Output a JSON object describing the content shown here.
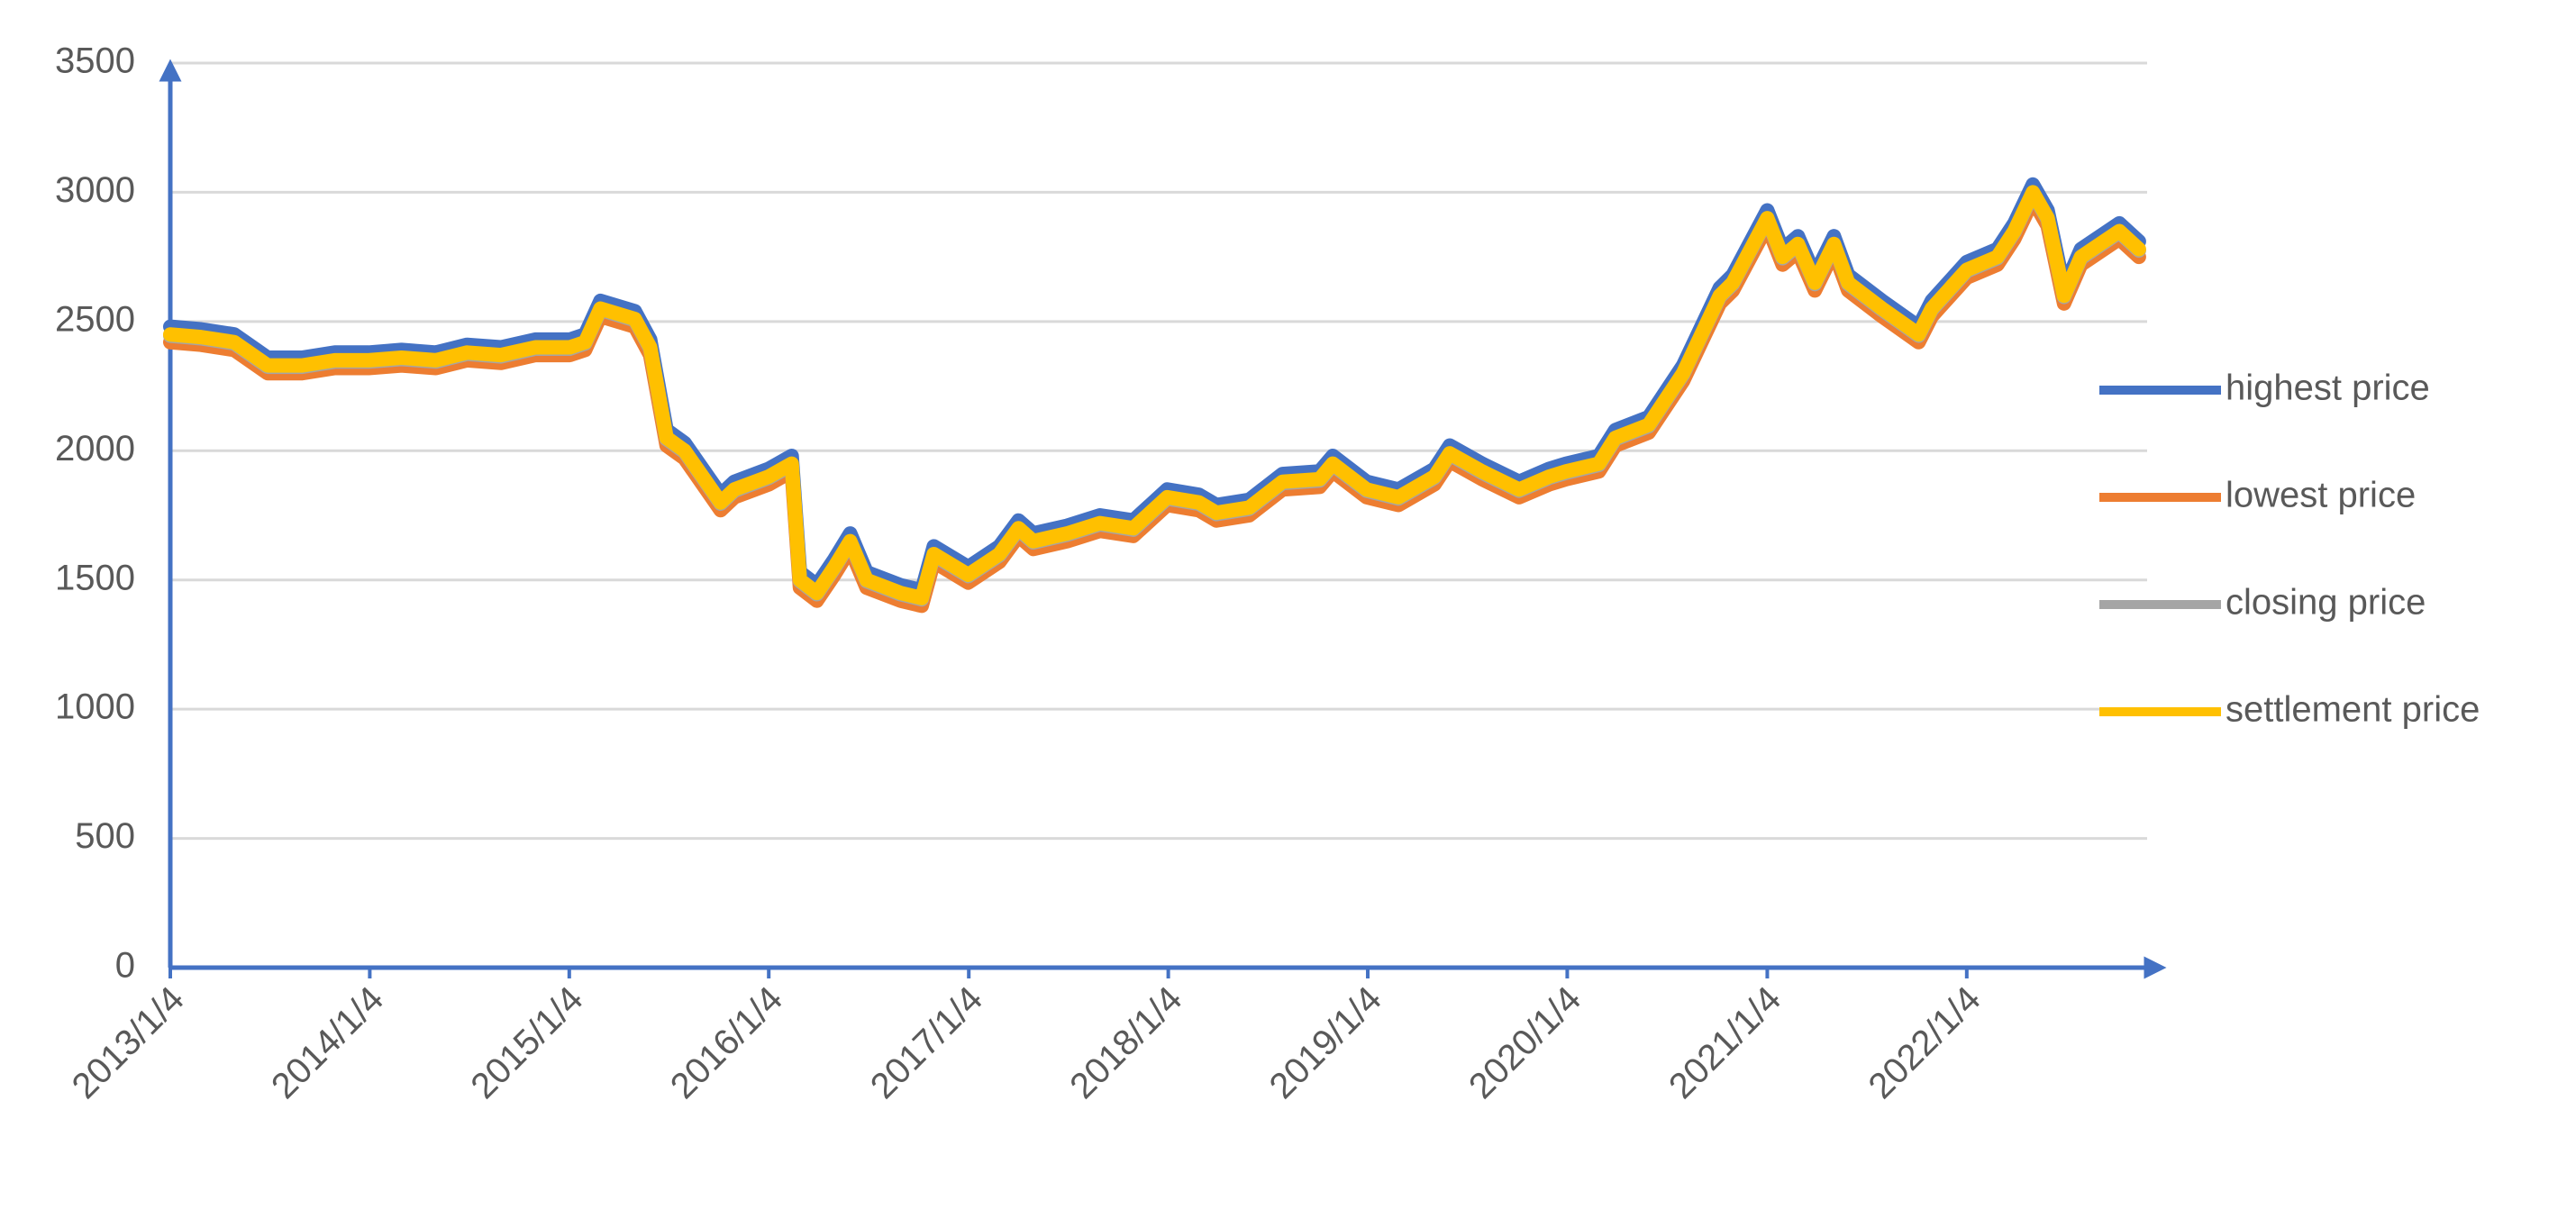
{
  "chart_data": {
    "type": "line",
    "x": [
      "2013/1/4",
      "2013/3/1",
      "2013/5/1",
      "2013/7/1",
      "2013/9/2",
      "2013/11/1",
      "2014/1/2",
      "2014/3/3",
      "2014/5/5",
      "2014/7/1",
      "2014/9/1",
      "2014/11/3",
      "2015/1/5",
      "2015/2/2",
      "2015/3/2",
      "2015/5/4",
      "2015/6/1",
      "2015/7/1",
      "2015/8/3",
      "2015/10/8",
      "2015/11/2",
      "2016/1/4",
      "2016/2/15",
      "2016/3/1",
      "2016/4/1",
      "2016/5/3",
      "2016/6/1",
      "2016/7/1",
      "2016/9/1",
      "2016/10/10",
      "2016/11/1",
      "2017/1/3",
      "2017/3/1",
      "2017/4/5",
      "2017/5/2",
      "2017/7/3",
      "2017/9/1",
      "2017/11/1",
      "2018/1/2",
      "2018/3/1",
      "2018/4/2",
      "2018/6/1",
      "2018/8/1",
      "2018/10/8",
      "2018/11/1",
      "2019/1/2",
      "2019/3/1",
      "2019/5/6",
      "2019/6/3",
      "2019/8/1",
      "2019/10/8",
      "2019/12/2",
      "2020/1/2",
      "2020/3/2",
      "2020/4/1",
      "2020/6/1",
      "2020/8/3",
      "2020/10/9",
      "2020/11/2",
      "2021/1/4",
      "2021/2/1",
      "2021/3/1",
      "2021/4/1",
      "2021/5/6",
      "2021/6/1",
      "2021/8/2",
      "2021/10/8",
      "2021/11/1",
      "2022/1/4",
      "2022/3/1",
      "2022/4/1",
      "2022/5/5",
      "2022/6/1",
      "2022/7/1",
      "2022/8/1",
      "2022/10/10",
      "2022/11/15"
    ],
    "series": [
      {
        "name": "highest price",
        "color": "#4472c4",
        "values": [
          2480,
          2470,
          2450,
          2360,
          2360,
          2380,
          2380,
          2390,
          2380,
          2410,
          2400,
          2430,
          2430,
          2450,
          2580,
          2540,
          2430,
          2080,
          2030,
          1830,
          1880,
          1930,
          1980,
          1530,
          1480,
          1580,
          1680,
          1530,
          1480,
          1460,
          1630,
          1550,
          1630,
          1730,
          1680,
          1710,
          1750,
          1730,
          1850,
          1830,
          1790,
          1810,
          1910,
          1920,
          1980,
          1880,
          1850,
          1930,
          2020,
          1950,
          1880,
          1930,
          1950,
          1980,
          2080,
          2130,
          2330,
          2630,
          2680,
          2930,
          2780,
          2830,
          2680,
          2830,
          2680,
          2580,
          2480,
          2580,
          2730,
          2780,
          2880,
          3030,
          2930,
          2630,
          2780,
          2880,
          2810
        ]
      },
      {
        "name": "lowest price",
        "color": "#ed7d31",
        "values": [
          2420,
          2410,
          2390,
          2300,
          2300,
          2320,
          2320,
          2330,
          2320,
          2350,
          2340,
          2370,
          2370,
          2390,
          2520,
          2480,
          2370,
          2020,
          1970,
          1770,
          1820,
          1870,
          1920,
          1470,
          1420,
          1520,
          1620,
          1470,
          1420,
          1400,
          1570,
          1490,
          1570,
          1670,
          1620,
          1650,
          1690,
          1670,
          1790,
          1770,
          1730,
          1750,
          1850,
          1860,
          1920,
          1820,
          1790,
          1870,
          1960,
          1890,
          1820,
          1870,
          1890,
          1920,
          2020,
          2070,
          2270,
          2570,
          2620,
          2870,
          2720,
          2770,
          2620,
          2770,
          2620,
          2520,
          2420,
          2520,
          2670,
          2720,
          2820,
          2970,
          2870,
          2570,
          2720,
          2820,
          2750
        ]
      },
      {
        "name": "closing price",
        "color": "#a5a5a5",
        "values": [
          2445,
          2435,
          2415,
          2325,
          2325,
          2345,
          2345,
          2355,
          2345,
          2375,
          2365,
          2395,
          2395,
          2415,
          2545,
          2505,
          2395,
          2045,
          1995,
          1795,
          1845,
          1895,
          1945,
          1495,
          1445,
          1545,
          1645,
          1495,
          1445,
          1425,
          1595,
          1515,
          1595,
          1695,
          1645,
          1675,
          1715,
          1695,
          1815,
          1795,
          1755,
          1775,
          1875,
          1885,
          1945,
          1845,
          1815,
          1895,
          1985,
          1915,
          1845,
          1895,
          1915,
          1945,
          2045,
          2095,
          2295,
          2595,
          2645,
          2895,
          2745,
          2795,
          2645,
          2795,
          2645,
          2545,
          2445,
          2545,
          2695,
          2745,
          2845,
          2995,
          2895,
          2595,
          2745,
          2845,
          2775
        ]
      },
      {
        "name": "settlement price",
        "color": "#ffc000",
        "values": [
          2450,
          2440,
          2420,
          2330,
          2330,
          2350,
          2350,
          2360,
          2350,
          2380,
          2370,
          2400,
          2400,
          2420,
          2550,
          2510,
          2400,
          2050,
          2000,
          1800,
          1850,
          1900,
          1950,
          1500,
          1450,
          1550,
          1650,
          1500,
          1450,
          1430,
          1600,
          1520,
          1600,
          1700,
          1650,
          1680,
          1720,
          1700,
          1820,
          1800,
          1760,
          1780,
          1880,
          1890,
          1950,
          1850,
          1820,
          1900,
          1990,
          1920,
          1850,
          1900,
          1920,
          1950,
          2050,
          2100,
          2300,
          2600,
          2650,
          2900,
          2750,
          2800,
          2650,
          2800,
          2650,
          2550,
          2450,
          2550,
          2700,
          2750,
          2850,
          3000,
          2900,
          2600,
          2750,
          2850,
          2780
        ]
      }
    ],
    "xlim": [
      "2013/1/4",
      "2022/11/30"
    ],
    "xticks": [
      "2013/1/4",
      "2014/1/4",
      "2015/1/4",
      "2016/1/4",
      "2017/1/4",
      "2018/1/4",
      "2019/1/4",
      "2020/1/4",
      "2021/1/4",
      "2022/1/4"
    ],
    "ylim": [
      0,
      3500
    ],
    "yticks": [
      0,
      500,
      1000,
      1500,
      2000,
      2500,
      3000,
      3500
    ],
    "grid": true,
    "legend": "right"
  }
}
